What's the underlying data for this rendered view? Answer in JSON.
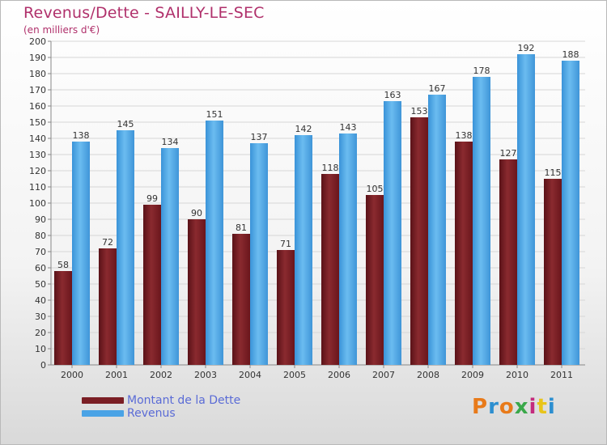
{
  "header": {
    "title": "Revenus/Dette - SAILLY-LE-SEC",
    "subtitle": "(en milliers d'€)"
  },
  "legend": {
    "items": [
      {
        "label": "Montant de la Dette",
        "color": "#7a1e24"
      },
      {
        "label": "Revenus",
        "color": "#4aa3e6"
      }
    ]
  },
  "logo": {
    "text": "Proxiti",
    "colors": [
      "#e87a1a",
      "#2d8fd0",
      "#e87a1a",
      "#3aa84a",
      "#c42b7d",
      "#e8c41a",
      "#2d8fd0"
    ]
  },
  "chart_data": {
    "type": "bar",
    "categories": [
      "2000",
      "2001",
      "2002",
      "2003",
      "2004",
      "2005",
      "2006",
      "2007",
      "2008",
      "2009",
      "2010",
      "2011"
    ],
    "series": [
      {
        "name": "Montant de la Dette",
        "values": [
          58,
          72,
          99,
          90,
          81,
          71,
          118,
          105,
          153,
          138,
          127,
          115
        ],
        "color": "#7a1e24"
      },
      {
        "name": "Revenus",
        "values": [
          138,
          145,
          134,
          151,
          137,
          142,
          143,
          163,
          167,
          178,
          192,
          188
        ],
        "color": "#4aa3e6"
      }
    ],
    "ylim": [
      0,
      200
    ],
    "ytick_step": 10,
    "grid": true,
    "legend_position": "bottom-left"
  }
}
